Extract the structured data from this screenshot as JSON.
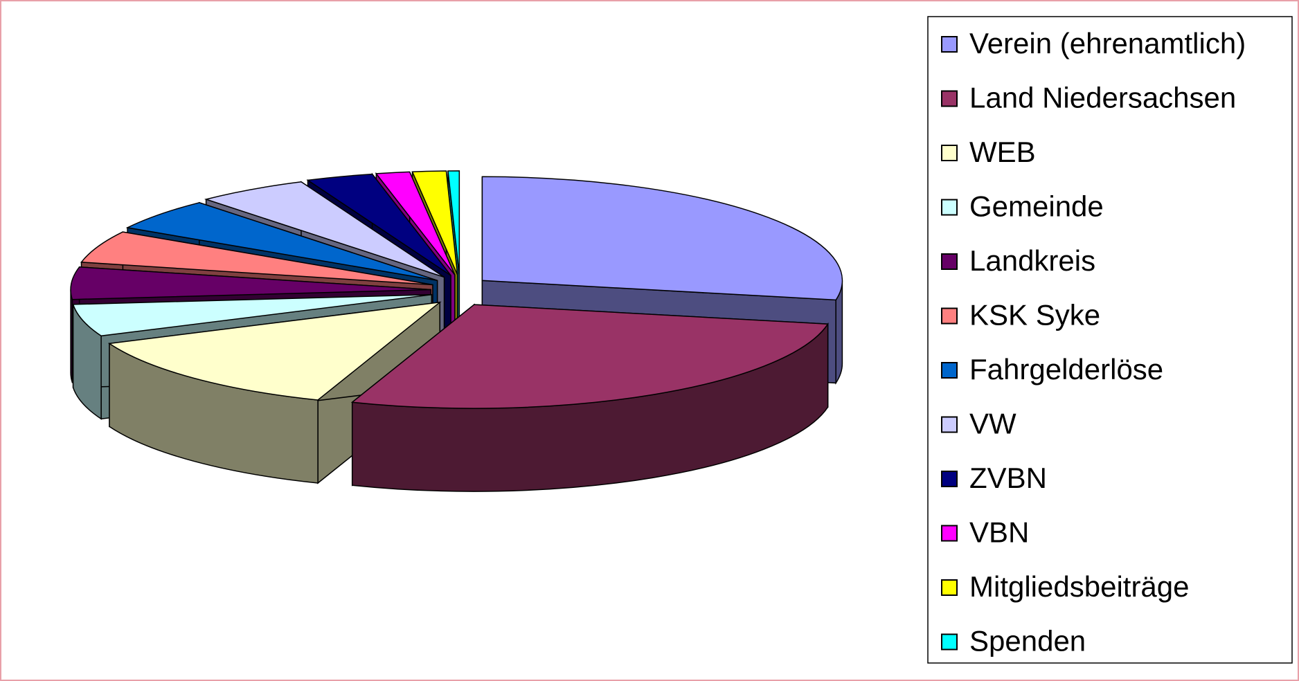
{
  "chart_data": {
    "type": "pie3d",
    "categories": [
      "Verein (ehrenamtlich)",
      "Land Niedersachsen",
      "WEB",
      "Gemeinde",
      "Landkreis",
      "KSK Syke",
      "Fahrgelderlöse",
      "VW",
      "ZVBN",
      "VBN",
      "Mitgliedsbeiträge",
      "Spenden"
    ],
    "values": [
      28,
      27.5,
      13,
      5,
      5,
      5,
      5,
      5,
      3,
      1.5,
      1.5,
      0.5
    ],
    "colors": [
      "#9999ff",
      "#993366",
      "#ffffcc",
      "#ccffff",
      "#660066",
      "#ff8080",
      "#0066cc",
      "#ccccff",
      "#000080",
      "#ff00ff",
      "#ffff00",
      "#00ffff"
    ],
    "legend": "right"
  }
}
